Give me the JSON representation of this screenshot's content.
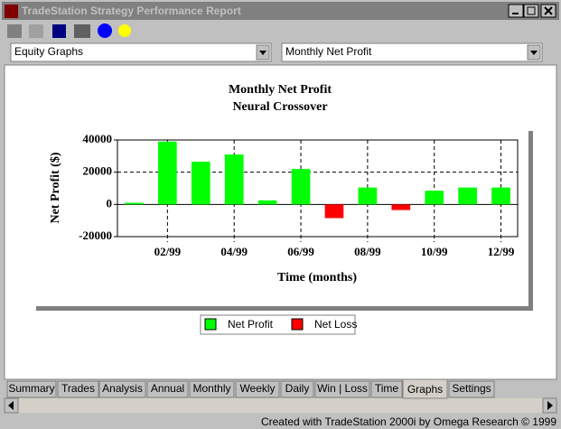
{
  "window": {
    "title": "TradeStation Strategy Performance Report"
  },
  "dropdowns": [
    "Equity Graphs",
    "Monthly Net Profit"
  ],
  "tabs": [
    "Summary",
    "Trades",
    "Analysis",
    "Annual",
    "Monthly",
    "Weekly",
    "Daily",
    "Win | Loss",
    "Time",
    "Graphs",
    "Settings"
  ],
  "active_tab": "Graphs",
  "footer": "Created with TradeStation 2000i by Omega Research © 1999",
  "chart_data": {
    "type": "bar",
    "title": "Monthly Net Profit",
    "subtitle": "Neural Crossover",
    "x_label": "Time (months)",
    "y_label": "Net Profit ($)",
    "categories": [
      null,
      "02/99",
      null,
      "04/99",
      null,
      "06/99",
      null,
      "08/99",
      null,
      "10/99",
      null,
      "12/99"
    ],
    "series": [
      {
        "name": "Net Profit",
        "color": "#00ff00",
        "values": [
          1000,
          39000,
          26500,
          31000,
          2500,
          22000,
          null,
          10500,
          null,
          8500,
          10500,
          10500
        ]
      },
      {
        "name": "Net Loss",
        "color": "#ff0000",
        "values": [
          null,
          null,
          null,
          null,
          null,
          null,
          -8500,
          null,
          -3500,
          null,
          null,
          null
        ]
      }
    ],
    "ylim": [
      -20000,
      40000
    ],
    "yticks": [
      -20000,
      0,
      20000,
      40000
    ],
    "grid": true,
    "legend": "bottom"
  }
}
